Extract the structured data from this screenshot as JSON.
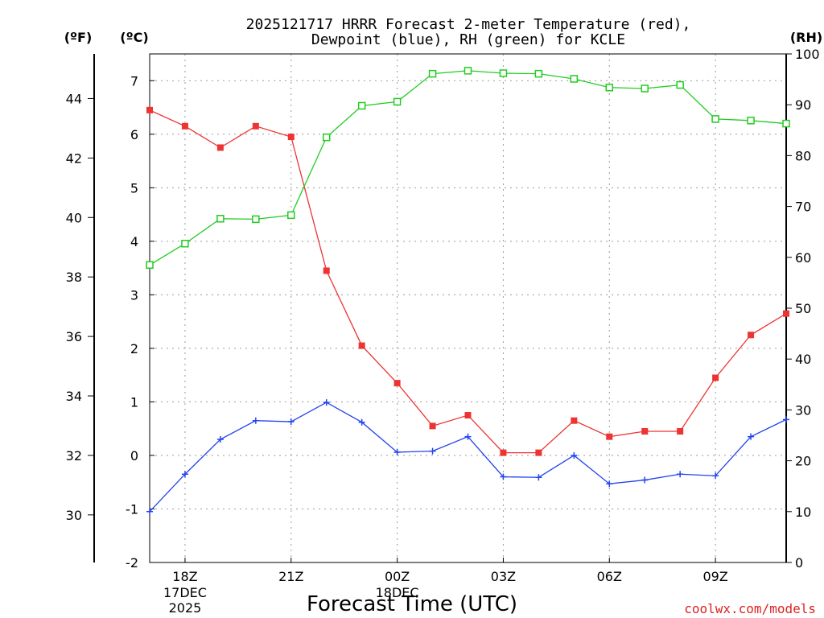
{
  "title_line1": "2025121717 HRRR Forecast 2-meter Temperature (red),",
  "title_line2": "Dewpoint (blue), RH (green) for KCLE",
  "units": {
    "fahrenheit": "(ºF)",
    "celsius": "(ºC)",
    "rh": "(RH)"
  },
  "xlabel": "Forecast Time (UTC)",
  "credit": "coolwx.com/models",
  "colors": {
    "temperature": "#ee3333",
    "dewpoint": "#2244ee",
    "rh": "#22cc22"
  },
  "chart_data": {
    "type": "line",
    "hours": [
      17,
      18,
      19,
      20,
      21,
      22,
      23,
      24,
      25,
      26,
      27,
      28,
      29,
      30,
      31,
      32,
      33,
      34,
      35
    ],
    "x_tick_hours": [
      18,
      21,
      24,
      27,
      30,
      33
    ],
    "x_ticks": [
      {
        "label": "18Z",
        "sub1": "17DEC",
        "sub2": "2025"
      },
      {
        "label": "21Z",
        "sub1": "",
        "sub2": ""
      },
      {
        "label": "00Z",
        "sub1": "18DEC",
        "sub2": ""
      },
      {
        "label": "03Z",
        "sub1": "",
        "sub2": ""
      },
      {
        "label": "06Z",
        "sub1": "",
        "sub2": ""
      },
      {
        "label": "09Z",
        "sub1": "",
        "sub2": ""
      }
    ],
    "xlim": [
      17,
      35
    ],
    "ylim_celsius": [
      -2,
      7.5
    ],
    "ylim_rh": [
      0,
      100
    ],
    "y_ticks_celsius": [
      "-2",
      "-1",
      "0",
      "1",
      "2",
      "3",
      "4",
      "5",
      "6",
      "7"
    ],
    "y_ticks_fahrenheit": [
      "30",
      "32",
      "34",
      "36",
      "38",
      "40",
      "42",
      "44"
    ],
    "y_ticks_rh": [
      "0",
      "10",
      "20",
      "30",
      "40",
      "50",
      "60",
      "70",
      "80",
      "90",
      "100"
    ],
    "series": [
      {
        "name": "Temperature (red)",
        "unit": "C",
        "values": [
          6.45,
          6.15,
          5.75,
          6.15,
          5.95,
          3.45,
          2.05,
          1.35,
          0.55,
          0.75,
          0.05,
          0.05,
          0.65,
          0.35,
          0.45,
          0.45,
          1.45,
          2.25,
          2.65
        ]
      },
      {
        "name": "Dewpoint (blue)",
        "unit": "C",
        "values": [
          -1.05,
          -0.35,
          0.3,
          0.65,
          0.63,
          0.99,
          0.62,
          0.06,
          0.08,
          0.35,
          -0.4,
          -0.41,
          0.0,
          -0.53,
          -0.46,
          -0.35,
          -0.38,
          0.35,
          0.67
        ]
      },
      {
        "name": "RH (green)",
        "unit": "%",
        "values": [
          58.5,
          62.7,
          67.6,
          67.5,
          68.3,
          83.6,
          89.8,
          90.6,
          96.1,
          96.7,
          96.2,
          96.1,
          95.1,
          93.4,
          93.2,
          93.9,
          87.2,
          86.9,
          86.3
        ]
      }
    ]
  }
}
